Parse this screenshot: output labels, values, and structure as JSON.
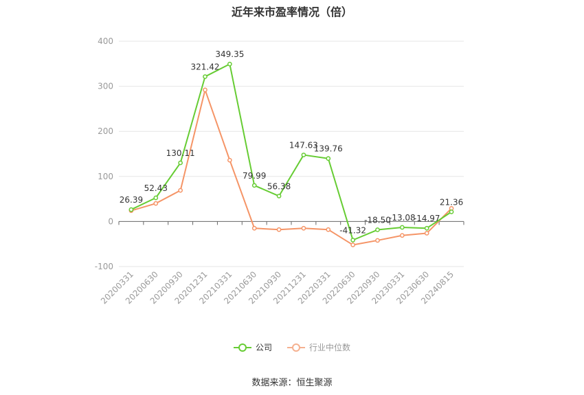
{
  "title": "近年来市盈率情况（倍）",
  "source": "数据来源：恒生聚源",
  "colors": {
    "company": "#66cc33",
    "industry": "#f59466",
    "grid": "#e6e6e6",
    "axis": "#666666"
  },
  "chart_data": {
    "type": "line",
    "title": "近年来市盈率情况（倍）",
    "categories": [
      "20200331",
      "20200630",
      "20200930",
      "20201231",
      "20210331",
      "20210630",
      "20210930",
      "20211231",
      "20220331",
      "20220630",
      "20220930",
      "20230331",
      "20230630",
      "20240815"
    ],
    "ylim": [
      -100,
      400
    ],
    "yticks": [
      -100,
      0,
      100,
      200,
      300,
      400
    ],
    "grid": true,
    "legend_position": "bottom",
    "series": [
      {
        "name": "公司",
        "color": "#66cc33",
        "values": [
          26.39,
          52.43,
          130.11,
          321.42,
          349.35,
          79.99,
          56.38,
          147.63,
          139.76,
          -41.32,
          -18.5,
          -13.08,
          -14.97,
          21.36
        ],
        "labels": [
          "26.39",
          "52.43",
          "130.11",
          "321.42",
          "349.35",
          "79.99",
          "56.38",
          "147.63",
          "139.76",
          "-41.32",
          "-18.50",
          "-13.08",
          "-14.97",
          "21.36"
        ]
      },
      {
        "name": "行业中位数",
        "color": "#f59466",
        "values": [
          24,
          40,
          69,
          292,
          136,
          -15,
          -18,
          -15,
          -18,
          -52,
          -42,
          -31,
          -26,
          29
        ]
      }
    ]
  }
}
